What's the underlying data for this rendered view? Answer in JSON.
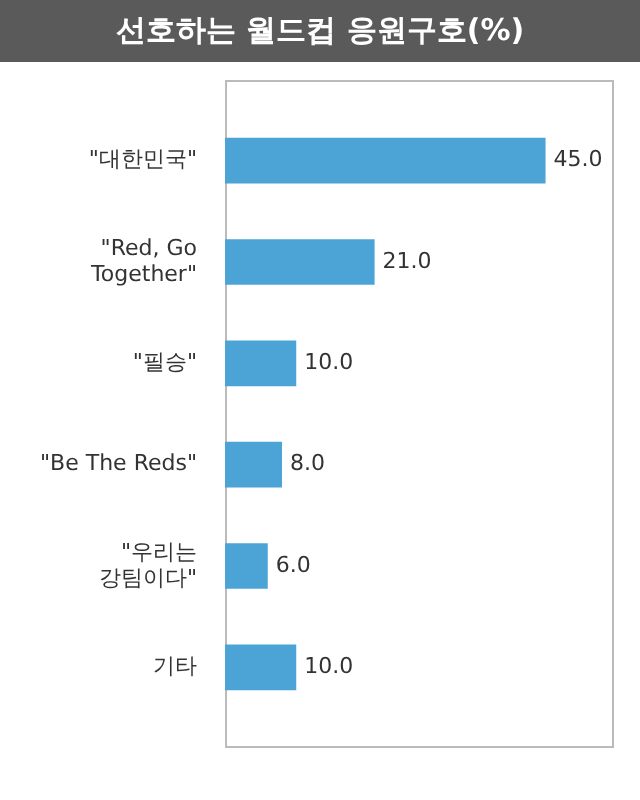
{
  "chart_data": {
    "type": "bar",
    "orientation": "horizontal",
    "title": "선호하는 월드컵 응원구호(%)",
    "categories": [
      "\"대한민국\"",
      "\"Red, Go Together\"",
      "\"필승\"",
      "\"Be The Reds\"",
      "\"우리는 강팀이다\"",
      "기타"
    ],
    "values": [
      45.0,
      21.0,
      10.0,
      8.0,
      6.0,
      10.0
    ],
    "value_labels": [
      "45.0",
      "21.0",
      "10.0",
      "8.0",
      "6.0",
      "10.0"
    ],
    "color": "#4ba3d6",
    "legend": false
  }
}
